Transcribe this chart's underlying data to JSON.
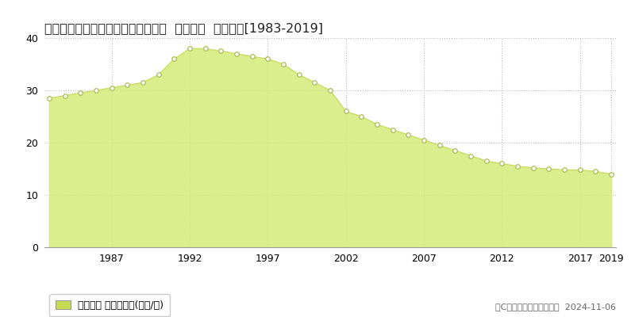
{
  "title": "長野県岡谷市郷田１丁目３８５番３  公示地価  地価推移[1983-2019]",
  "years": [
    1983,
    1984,
    1985,
    1986,
    1987,
    1988,
    1989,
    1990,
    1991,
    1992,
    1993,
    1994,
    1995,
    1996,
    1997,
    1998,
    1999,
    2000,
    2001,
    2002,
    2003,
    2004,
    2005,
    2006,
    2007,
    2008,
    2009,
    2010,
    2011,
    2012,
    2013,
    2014,
    2015,
    2016,
    2017,
    2018,
    2019
  ],
  "values": [
    28.5,
    29.0,
    29.5,
    30.0,
    30.5,
    31.0,
    31.5,
    33.0,
    36.0,
    38.0,
    38.0,
    37.5,
    37.0,
    36.5,
    36.0,
    35.0,
    33.0,
    31.5,
    30.0,
    26.0,
    25.0,
    23.5,
    22.5,
    21.5,
    20.5,
    19.5,
    18.5,
    17.5,
    16.5,
    16.0,
    15.5,
    15.2,
    15.0,
    14.8,
    14.8,
    14.5,
    14.0
  ],
  "fill_color": "#d4eb7a",
  "fill_alpha": 0.85,
  "line_color": "#c8dc60",
  "marker_facecolor": "#ffffff",
  "marker_edgecolor": "#aabb55",
  "legend_label": "公示地価 平均坪単価(万円/坪)",
  "legend_color": "#c8dc50",
  "copyright_text": "（C）土地価格ドットコム  2024-11-06",
  "bg_color": "#ffffff",
  "grid_color": "#bbbbbb",
  "ylim": [
    0,
    40
  ],
  "yticks": [
    0,
    10,
    20,
    30,
    40
  ],
  "xtick_years": [
    1987,
    1992,
    1997,
    2002,
    2007,
    2012,
    2017,
    2019
  ],
  "title_fontsize": 11.5,
  "tick_fontsize": 9,
  "legend_fontsize": 9,
  "copyright_fontsize": 8
}
